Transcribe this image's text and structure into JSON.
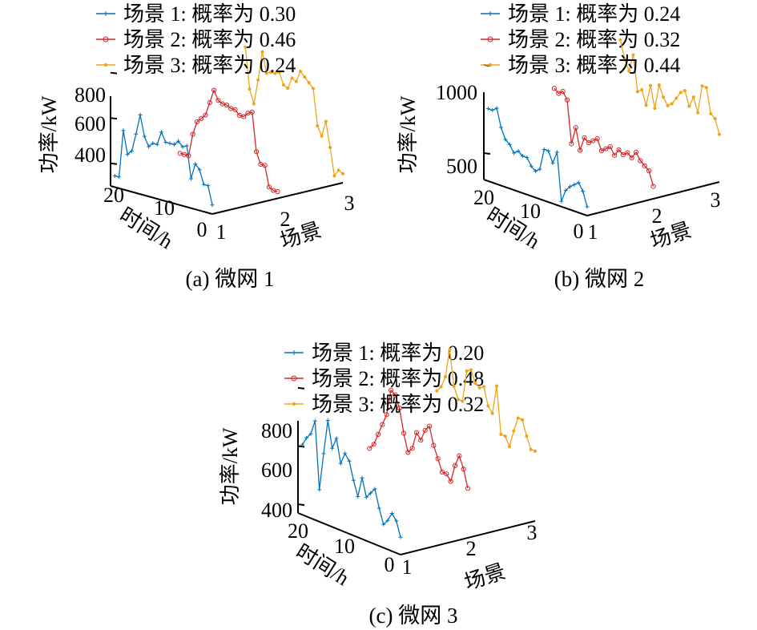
{
  "colors": {
    "s1": "#0072BD",
    "s2": "#D62728",
    "s3": "#EDA51A"
  },
  "chart_data": [
    {
      "type": "line",
      "title": "(a) 微网 1",
      "xlabel": "场景",
      "ylabel": "时间/h",
      "zlabel": "功率/kW",
      "x_ticks": [
        "1",
        "2",
        "3"
      ],
      "y_ticks": [
        "0",
        "10",
        "20"
      ],
      "z_ticks": [
        "400",
        "600",
        "800"
      ],
      "zlim": [
        300,
        820
      ],
      "ylim": [
        0,
        24
      ],
      "series": [
        {
          "name": "场景 1: 概率为 0.30",
          "x": 1,
          "values": [
            340,
            420,
            420,
            480,
            500,
            430,
            570,
            560,
            580,
            560,
            560,
            560,
            600,
            540,
            540,
            520,
            560,
            650,
            560,
            480,
            460,
            560,
            350,
            350
          ]
        },
        {
          "name": "场景 2: 概率为 0.46",
          "x": 2,
          "values": [
            330,
            330,
            340,
            430,
            430,
            480,
            650,
            640,
            620,
            620,
            640,
            640,
            650,
            650,
            660,
            700,
            640,
            580,
            560,
            540,
            480,
            380,
            380,
            380
          ]
        },
        {
          "name": "场景 3: 概率为 0.24",
          "x": 3,
          "values": [
            340,
            350,
            320,
            440,
            550,
            480,
            520,
            680,
            700,
            720,
            740,
            690,
            700,
            650,
            660,
            710,
            700,
            700,
            690,
            780,
            650,
            540,
            600,
            780
          ]
        }
      ]
    },
    {
      "type": "line",
      "title": "(b) 微网 2",
      "xlabel": "场景",
      "ylabel": "时间/h",
      "zlabel": "功率/kW",
      "x_ticks": [
        "1",
        "2",
        "3"
      ],
      "y_ticks": [
        "0",
        "10",
        "20"
      ],
      "z_ticks": [
        "500",
        "1000"
      ],
      "zlim": [
        350,
        1050
      ],
      "ylim": [
        0,
        24
      ],
      "series": [
        {
          "name": "场景 1: 概率为 0.24",
          "x": 1,
          "values": [
            400,
            480,
            520,
            500,
            480,
            450,
            380,
            650,
            580,
            640,
            640,
            520,
            500,
            520,
            560,
            560,
            580,
            560,
            600,
            620,
            680,
            780,
            760,
            760
          ]
        },
        {
          "name": "场景 2: 概率为 0.32",
          "x": 2,
          "values": [
            420,
            500,
            520,
            540,
            580,
            540,
            560,
            540,
            560,
            520,
            560,
            540,
            520,
            580,
            560,
            540,
            560,
            480,
            600,
            500,
            740,
            780,
            760,
            780
          ]
        },
        {
          "name": "场景 3: 概率为 0.44",
          "x": 3,
          "values": [
            620,
            700,
            720,
            860,
            860,
            700,
            780,
            720,
            800,
            780,
            740,
            700,
            680,
            720,
            780,
            640,
            760,
            640,
            720,
            700,
            900,
            800,
            860,
            960
          ]
        }
      ]
    },
    {
      "type": "line",
      "title": "(c) 微网 3",
      "xlabel": "场景",
      "ylabel": "时间/h",
      "zlabel": "功率/kW",
      "x_ticks": [
        "1",
        "2",
        "3"
      ],
      "y_ticks": [
        "0",
        "10",
        "20"
      ],
      "z_ticks": [
        "400",
        "600",
        "800"
      ],
      "zlim": [
        370,
        830
      ],
      "ylim": [
        0,
        24
      ],
      "series": [
        {
          "name": "场景 1: 概率为 0.20",
          "x": 1,
          "values": [
            430,
            480,
            500,
            470,
            450,
            500,
            560,
            540,
            520,
            580,
            510,
            560,
            620,
            640,
            600,
            680,
            640,
            730,
            610,
            480,
            710,
            660,
            640,
            610
          ]
        },
        {
          "name": "场景 2: 概率为 0.48",
          "x": 2,
          "values": [
            540,
            600,
            640,
            600,
            540,
            560,
            560,
            600,
            640,
            700,
            680,
            640,
            660,
            600,
            580,
            640,
            720,
            760,
            770,
            680,
            640,
            600,
            560,
            540
          ]
        },
        {
          "name": "场景 3: 概率为 0.32",
          "x": 3,
          "values": [
            610,
            610,
            650,
            700,
            700,
            650,
            590,
            620,
            620,
            780,
            680,
            700,
            760,
            750,
            760,
            800,
            790,
            680,
            680,
            720,
            840,
            740,
            700,
            680
          ]
        }
      ]
    }
  ]
}
